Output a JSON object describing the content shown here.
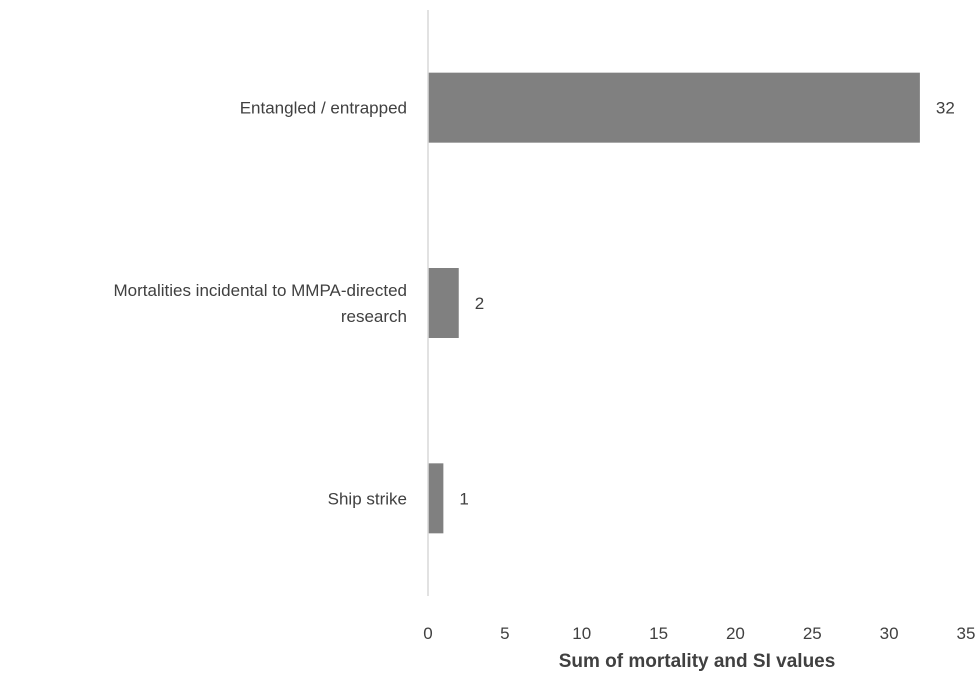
{
  "chart_data": {
    "type": "bar",
    "orientation": "horizontal",
    "categories": [
      [
        "Entangled / entrapped"
      ],
      [
        "Mortalities incidental to MMPA-directed",
        "research"
      ],
      [
        "Ship strike"
      ]
    ],
    "values": [
      32,
      2,
      1
    ],
    "data_labels": [
      "32",
      "2",
      "1"
    ],
    "xlabel": "Sum of mortality and SI values",
    "ylabel": "",
    "title": "",
    "xlim": [
      0,
      35
    ],
    "xticks": [
      0,
      5,
      10,
      15,
      20,
      25,
      30,
      35
    ],
    "grid": false,
    "legend": "none",
    "colors": {
      "bar": "#808080",
      "axis": "#d9d9d9",
      "text": "#404040"
    }
  }
}
